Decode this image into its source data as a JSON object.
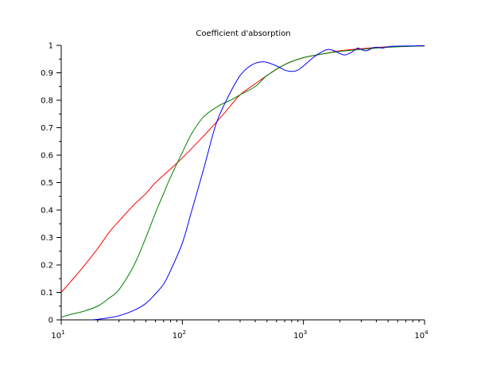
{
  "chart_data": {
    "type": "line",
    "title": "Coefficient d'absorption",
    "xlabel": "",
    "ylabel": "",
    "xscale": "log",
    "xlim": [
      10,
      10000
    ],
    "ylim": [
      0,
      1
    ],
    "grid": false,
    "legend": "none",
    "x_ticks": [
      {
        "base": "10",
        "exp": "1",
        "value": 10
      },
      {
        "base": "10",
        "exp": "2",
        "value": 100
      },
      {
        "base": "10",
        "exp": "3",
        "value": 1000
      },
      {
        "base": "10",
        "exp": "4",
        "value": 10000
      }
    ],
    "y_ticks": [
      {
        "label": "0",
        "value": 0
      },
      {
        "label": "0.1",
        "value": 0.1
      },
      {
        "label": "0.2",
        "value": 0.2
      },
      {
        "label": "0.3",
        "value": 0.3
      },
      {
        "label": "0.4",
        "value": 0.4
      },
      {
        "label": "0.5",
        "value": 0.5
      },
      {
        "label": "0.6",
        "value": 0.6
      },
      {
        "label": "0.7",
        "value": 0.7
      },
      {
        "label": "0.8",
        "value": 0.8
      },
      {
        "label": "0.9",
        "value": 0.9
      },
      {
        "label": "1",
        "value": 1
      }
    ],
    "series": [
      {
        "color": "#ff0000",
        "points": [
          [
            10,
            0.1
          ],
          [
            12,
            0.14
          ],
          [
            15,
            0.19
          ],
          [
            20,
            0.26
          ],
          [
            25,
            0.32
          ],
          [
            30,
            0.36
          ],
          [
            40,
            0.42
          ],
          [
            50,
            0.46
          ],
          [
            60,
            0.5
          ],
          [
            80,
            0.55
          ],
          [
            100,
            0.59
          ],
          [
            150,
            0.67
          ],
          [
            200,
            0.73
          ],
          [
            250,
            0.78
          ],
          [
            300,
            0.82
          ],
          [
            400,
            0.86
          ],
          [
            500,
            0.89
          ],
          [
            700,
            0.93
          ],
          [
            1000,
            0.955
          ],
          [
            1500,
            0.97
          ],
          [
            2000,
            0.98
          ],
          [
            3000,
            0.988
          ],
          [
            5000,
            0.995
          ],
          [
            10000,
            0.998
          ]
        ]
      },
      {
        "color": "#008000",
        "points": [
          [
            10,
            0.01
          ],
          [
            12,
            0.02
          ],
          [
            15,
            0.03
          ],
          [
            20,
            0.05
          ],
          [
            25,
            0.08
          ],
          [
            30,
            0.11
          ],
          [
            40,
            0.2
          ],
          [
            50,
            0.3
          ],
          [
            60,
            0.39
          ],
          [
            70,
            0.46
          ],
          [
            80,
            0.52
          ],
          [
            100,
            0.61
          ],
          [
            120,
            0.68
          ],
          [
            150,
            0.74
          ],
          [
            200,
            0.78
          ],
          [
            250,
            0.8
          ],
          [
            300,
            0.82
          ],
          [
            400,
            0.85
          ],
          [
            500,
            0.89
          ],
          [
            700,
            0.93
          ],
          [
            1000,
            0.955
          ],
          [
            1500,
            0.97
          ],
          [
            2000,
            0.978
          ],
          [
            3000,
            0.985
          ],
          [
            5000,
            0.993
          ],
          [
            10000,
            0.998
          ]
        ]
      },
      {
        "color": "#0000ff",
        "points": [
          [
            18,
            0.0
          ],
          [
            20,
            0.002
          ],
          [
            25,
            0.008
          ],
          [
            30,
            0.015
          ],
          [
            40,
            0.035
          ],
          [
            50,
            0.06
          ],
          [
            60,
            0.095
          ],
          [
            70,
            0.13
          ],
          [
            80,
            0.18
          ],
          [
            100,
            0.28
          ],
          [
            120,
            0.4
          ],
          [
            150,
            0.55
          ],
          [
            180,
            0.68
          ],
          [
            200,
            0.74
          ],
          [
            250,
            0.83
          ],
          [
            300,
            0.89
          ],
          [
            350,
            0.92
          ],
          [
            400,
            0.935
          ],
          [
            450,
            0.94
          ],
          [
            500,
            0.938
          ],
          [
            600,
            0.925
          ],
          [
            700,
            0.91
          ],
          [
            800,
            0.905
          ],
          [
            900,
            0.91
          ],
          [
            1000,
            0.925
          ],
          [
            1200,
            0.955
          ],
          [
            1400,
            0.975
          ],
          [
            1600,
            0.985
          ],
          [
            1800,
            0.98
          ],
          [
            2000,
            0.97
          ],
          [
            2200,
            0.965
          ],
          [
            2500,
            0.975
          ],
          [
            2800,
            0.99
          ],
          [
            3000,
            0.985
          ],
          [
            3300,
            0.98
          ],
          [
            3700,
            0.99
          ],
          [
            4000,
            0.993
          ],
          [
            4500,
            0.99
          ],
          [
            5000,
            0.995
          ],
          [
            6000,
            0.997
          ],
          [
            8000,
            0.998
          ],
          [
            10000,
            0.999
          ]
        ]
      }
    ]
  }
}
